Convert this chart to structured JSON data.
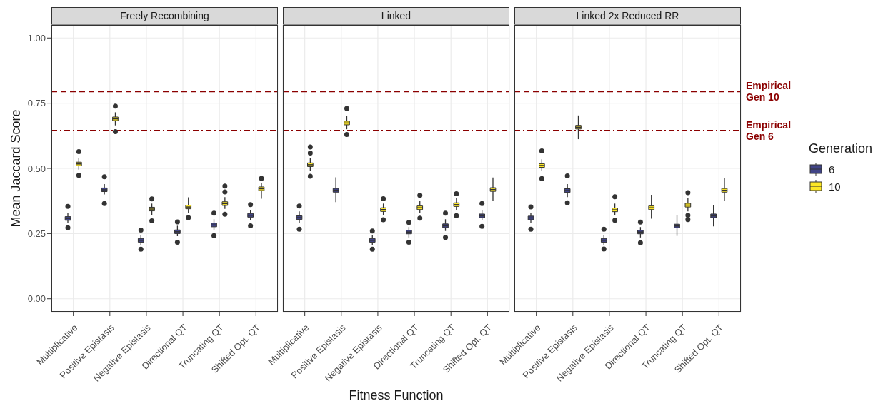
{
  "chart_data": [
    {
      "type": "box",
      "title": "Freely Recombining",
      "ylabel": "Mean Jaccard Score",
      "categories": [
        "Multiplicative",
        "Positive Epistasis",
        "Negative Epistasis",
        "Directional QT",
        "Truncating QT",
        "Shifted Opt. QT"
      ],
      "ylim": [
        -0.05,
        1.05
      ],
      "yticks": [
        {
          "value": 0,
          "label": "0.00"
        },
        {
          "value": 0.25,
          "label": "0.25"
        },
        {
          "value": 0.5,
          "label": "0.50"
        },
        {
          "value": 0.75,
          "label": "0.75"
        },
        {
          "value": 1,
          "label": "1.00"
        }
      ],
      "grid": true,
      "ref_lines": [
        {
          "axis": "y",
          "value": 0.795,
          "color": "#8b0000",
          "line_style": "dashed"
        },
        {
          "axis": "y",
          "value": 0.645,
          "color": "#8b0000",
          "line_style": "dashdot"
        }
      ],
      "series": [
        {
          "color": "#414487",
          "boxes": [
            {
              "low": 0.29,
              "q1": 0.301,
              "median": 0.308,
              "q3": 0.315,
              "high": 0.33,
              "outliers": [
                0.272,
                0.354
              ]
            },
            {
              "low": 0.4,
              "q1": 0.411,
              "median": 0.418,
              "q3": 0.425,
              "high": 0.44,
              "outliers": [
                0.365,
                0.468
              ]
            },
            {
              "low": 0.205,
              "q1": 0.217,
              "median": 0.224,
              "q3": 0.231,
              "high": 0.245,
              "outliers": [
                0.19,
                0.263
              ]
            },
            {
              "low": 0.24,
              "q1": 0.25,
              "median": 0.257,
              "q3": 0.264,
              "high": 0.28,
              "outliers": [
                0.217,
                0.295
              ]
            },
            {
              "low": 0.265,
              "q1": 0.276,
              "median": 0.283,
              "q3": 0.29,
              "high": 0.305,
              "outliers": [
                0.242,
                0.328
              ]
            },
            {
              "low": 0.3,
              "q1": 0.313,
              "median": 0.32,
              "q3": 0.327,
              "high": 0.34,
              "outliers": [
                0.28,
                0.361
              ]
            }
          ]
        },
        {
          "color": "#fde725",
          "boxes": [
            {
              "low": 0.495,
              "q1": 0.51,
              "median": 0.517,
              "q3": 0.524,
              "high": 0.54,
              "outliers": [
                0.473,
                0.564
              ]
            },
            {
              "low": 0.665,
              "q1": 0.683,
              "median": 0.69,
              "q3": 0.697,
              "high": 0.715,
              "outliers": [
                0.641,
                0.739
              ]
            },
            {
              "low": 0.32,
              "q1": 0.337,
              "median": 0.344,
              "q3": 0.351,
              "high": 0.365,
              "outliers": [
                0.299,
                0.383
              ]
            },
            {
              "low": 0.33,
              "q1": 0.345,
              "median": 0.352,
              "q3": 0.359,
              "high": 0.389,
              "outliers": [
                0.311
              ]
            },
            {
              "low": 0.345,
              "q1": 0.358,
              "median": 0.365,
              "q3": 0.372,
              "high": 0.39,
              "outliers": [
                0.324,
                0.41,
                0.432
              ]
            },
            {
              "low": 0.384,
              "q1": 0.415,
              "median": 0.422,
              "q3": 0.429,
              "high": 0.445,
              "outliers": [
                0.462
              ]
            }
          ]
        }
      ]
    },
    {
      "type": "box",
      "title": "Linked",
      "xlabel": "Fitness Function",
      "categories": [
        "Multiplicative",
        "Positive Epistasis",
        "Negative Epistasis",
        "Directional QT",
        "Truncating QT",
        "Shifted Opt. QT"
      ],
      "ylim": [
        -0.05,
        1.05
      ],
      "yticks": [
        0,
        0.25,
        0.5,
        0.75,
        1
      ],
      "grid": true,
      "tick_labels": "x",
      "ref_lines": [
        {
          "axis": "y",
          "value": 0.795,
          "color": "#8b0000",
          "line_style": "dashed"
        },
        {
          "axis": "y",
          "value": 0.645,
          "color": "#8b0000",
          "line_style": "dashdot"
        }
      ],
      "series": [
        {
          "color": "#414487",
          "boxes": [
            {
              "low": 0.29,
              "q1": 0.304,
              "median": 0.311,
              "q3": 0.318,
              "high": 0.335,
              "outliers": [
                0.267,
                0.356
              ]
            },
            {
              "low": 0.371,
              "q1": 0.409,
              "median": 0.416,
              "q3": 0.423,
              "high": 0.466
            },
            {
              "low": 0.205,
              "q1": 0.217,
              "median": 0.224,
              "q3": 0.231,
              "high": 0.245,
              "outliers": [
                0.19,
                0.26
              ]
            },
            {
              "low": 0.235,
              "q1": 0.249,
              "median": 0.256,
              "q3": 0.263,
              "high": 0.275,
              "outliers": [
                0.217,
                0.293
              ]
            },
            {
              "low": 0.26,
              "q1": 0.273,
              "median": 0.28,
              "q3": 0.287,
              "high": 0.305,
              "outliers": [
                0.235,
                0.328
              ]
            },
            {
              "low": 0.3,
              "q1": 0.311,
              "median": 0.318,
              "q3": 0.325,
              "high": 0.34,
              "outliers": [
                0.278,
                0.365
              ]
            }
          ]
        },
        {
          "color": "#fde725",
          "boxes": [
            {
              "low": 0.49,
              "q1": 0.507,
              "median": 0.514,
              "q3": 0.521,
              "high": 0.54,
              "outliers": [
                0.47,
                0.559,
                0.582
              ]
            },
            {
              "low": 0.65,
              "q1": 0.667,
              "median": 0.674,
              "q3": 0.681,
              "high": 0.7,
              "outliers": [
                0.63,
                0.73
              ]
            },
            {
              "low": 0.32,
              "q1": 0.335,
              "median": 0.342,
              "q3": 0.349,
              "high": 0.365,
              "outliers": [
                0.303,
                0.384
              ]
            },
            {
              "low": 0.33,
              "q1": 0.342,
              "median": 0.349,
              "q3": 0.356,
              "high": 0.375,
              "outliers": [
                0.309,
                0.397
              ]
            },
            {
              "low": 0.34,
              "q1": 0.354,
              "median": 0.361,
              "q3": 0.368,
              "high": 0.385,
              "outliers": [
                0.319,
                0.403
              ]
            },
            {
              "low": 0.376,
              "q1": 0.412,
              "median": 0.419,
              "q3": 0.426,
              "high": 0.465
            }
          ]
        }
      ]
    },
    {
      "type": "box",
      "title": "Linked 2x Reduced RR",
      "categories": [
        "Multiplicative",
        "Positive Epistasis",
        "Negative Epistasis",
        "Directional QT",
        "Truncating QT",
        "Shifted Opt. QT"
      ],
      "ylim": [
        -0.05,
        1.05
      ],
      "yticks": [
        0,
        0.25,
        0.5,
        0.75,
        1
      ],
      "grid": true,
      "tick_labels": "x",
      "legend": "right",
      "legend_title": "Generation",
      "ref_lines": [
        {
          "axis": "y",
          "value": 0.795,
          "label": "Empirical Gen 10",
          "color": "#8b0000",
          "line_style": "dashed"
        },
        {
          "axis": "y",
          "value": 0.645,
          "label": "Empirical Gen 6",
          "color": "#8b0000",
          "line_style": "dashdot"
        }
      ],
      "series": [
        {
          "name": "6",
          "color": "#414487",
          "boxes": [
            {
              "low": 0.29,
              "q1": 0.303,
              "median": 0.31,
              "q3": 0.317,
              "high": 0.33,
              "outliers": [
                0.267,
                0.352
              ]
            },
            {
              "low": 0.39,
              "q1": 0.408,
              "median": 0.415,
              "q3": 0.422,
              "high": 0.44,
              "outliers": [
                0.368,
                0.471
              ]
            },
            {
              "low": 0.205,
              "q1": 0.217,
              "median": 0.224,
              "q3": 0.231,
              "high": 0.245,
              "outliers": [
                0.191,
                0.267
              ]
            },
            {
              "low": 0.235,
              "q1": 0.249,
              "median": 0.256,
              "q3": 0.263,
              "high": 0.275,
              "outliers": [
                0.215,
                0.294
              ]
            },
            {
              "low": 0.241,
              "q1": 0.272,
              "median": 0.279,
              "q3": 0.286,
              "high": 0.32
            },
            {
              "low": 0.278,
              "q1": 0.311,
              "median": 0.318,
              "q3": 0.325,
              "high": 0.358
            }
          ]
        },
        {
          "name": "10",
          "color": "#fde725",
          "boxes": [
            {
              "low": 0.49,
              "q1": 0.504,
              "median": 0.511,
              "q3": 0.518,
              "high": 0.535,
              "outliers": [
                0.461,
                0.567
              ]
            },
            {
              "low": 0.612,
              "q1": 0.651,
              "median": 0.658,
              "q3": 0.665,
              "high": 0.703
            },
            {
              "low": 0.32,
              "q1": 0.334,
              "median": 0.341,
              "q3": 0.348,
              "high": 0.365,
              "outliers": [
                0.301,
                0.391
              ]
            },
            {
              "low": 0.307,
              "q1": 0.342,
              "median": 0.349,
              "q3": 0.356,
              "high": 0.399
            },
            {
              "low": 0.335,
              "q1": 0.352,
              "median": 0.359,
              "q3": 0.366,
              "high": 0.385,
              "outliers": [
                0.304,
                0.32,
                0.407
              ]
            },
            {
              "low": 0.377,
              "q1": 0.409,
              "median": 0.416,
              "q3": 0.423,
              "high": 0.462
            }
          ]
        }
      ]
    }
  ]
}
